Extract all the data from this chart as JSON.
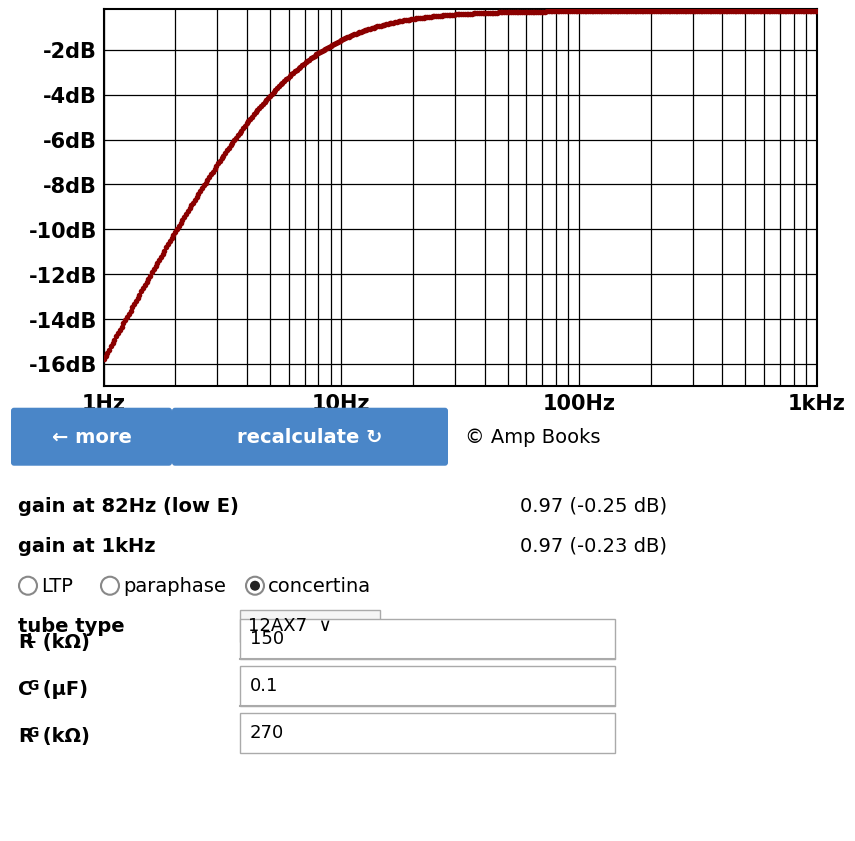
{
  "freq_min": 1,
  "freq_max": 1000,
  "db_min": -17,
  "db_max": -0.5,
  "yticks": [
    -2,
    -4,
    -6,
    -8,
    -10,
    -12,
    -14,
    -16
  ],
  "ytick_labels": [
    "-2dB",
    "-4dB",
    "-6dB",
    "-8dB",
    "-10dB",
    "-12dB",
    "-14dB",
    "-16dB"
  ],
  "xtick_positions": [
    1,
    10,
    100,
    1000
  ],
  "xtick_labels": [
    "1Hz",
    "10Hz",
    "100Hz",
    "1kHz"
  ],
  "dot_color": "#8B0000",
  "bg_color": "#ffffff",
  "grid_color": "#000000",
  "R_G": 270000,
  "C_G": 1e-07,
  "gain_82hz_label": "gain at 82Hz (low E)",
  "gain_82hz_value": "0.97 (-0.25 dB)",
  "gain_1khz_label": "gain at 1kHz",
  "gain_1khz_value": "0.97 (-0.23 dB)",
  "tube_type_label": "tube type",
  "tube_type_value": "12AX7  ∨",
  "rl_label": "R",
  "rl_sub": "L",
  "rl_unit": " (kΩ)",
  "rl_value": "150",
  "cg_label": "C",
  "cg_sub": "G",
  "cg_unit": " (μF)",
  "cg_value": "0.1",
  "rg_label": "R",
  "rg_sub": "G",
  "rg_unit": " (kΩ)",
  "rg_value": "270",
  "button1_text": "← more",
  "button2_text": "recalculate ↻",
  "copyright_text": "© Amp Books",
  "panel_bg": "#d4d4d4",
  "button_color": "#4a86c8",
  "button_text_color": "#ffffff",
  "fig_width": 8.15,
  "fig_height": 8.47
}
